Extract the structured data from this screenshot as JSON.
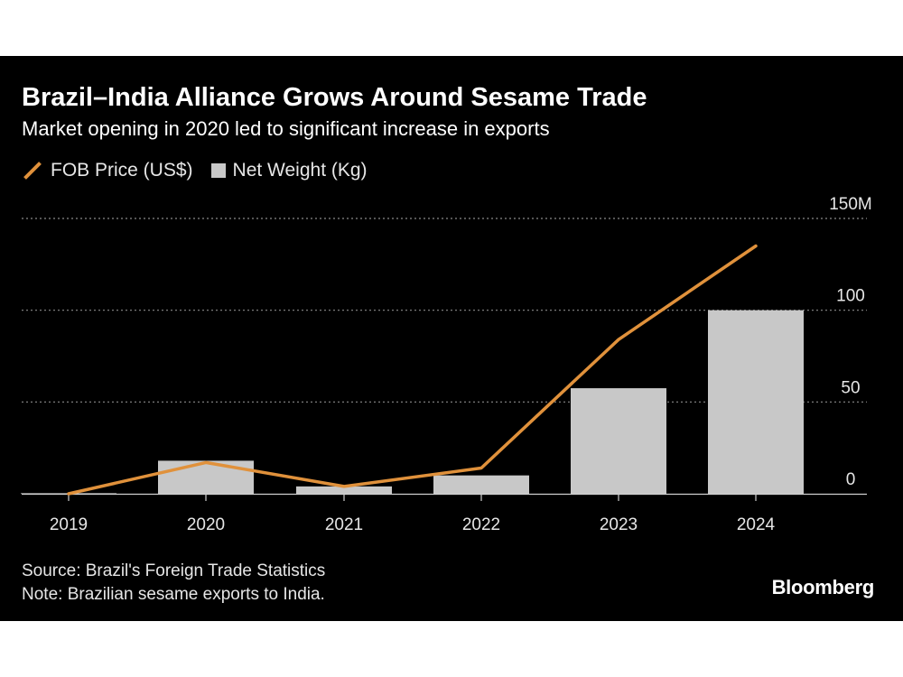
{
  "chart_data": {
    "type": "bar",
    "title": "Brazil–India Alliance Grows Around Sesame Trade",
    "subtitle": "Market opening in 2020 led to significant increase in exports",
    "categories": [
      "2019",
      "2020",
      "2021",
      "2022",
      "2023",
      "2024"
    ],
    "series": [
      {
        "name": "Net Weight (Kg)",
        "type": "bar",
        "color": "#c8c8c8",
        "values": [
          0.3,
          18,
          4,
          10,
          57.5,
          100
        ]
      },
      {
        "name": "FOB Price (US$)",
        "type": "line",
        "color": "#e0913b",
        "values": [
          0,
          17,
          4,
          14,
          84,
          135
        ]
      }
    ],
    "y_axis": {
      "ticks": [
        "0",
        "50",
        "100",
        "150M"
      ],
      "tick_values": [
        0,
        50,
        100,
        150
      ],
      "ylim": [
        0,
        150
      ],
      "position": "right"
    },
    "grid": true,
    "legend_position": "top-left"
  },
  "footer": {
    "source": "Source: Brazil's Foreign Trade Statistics",
    "note": "Note: Brazilian sesame exports to India."
  },
  "brand": "Bloomberg"
}
